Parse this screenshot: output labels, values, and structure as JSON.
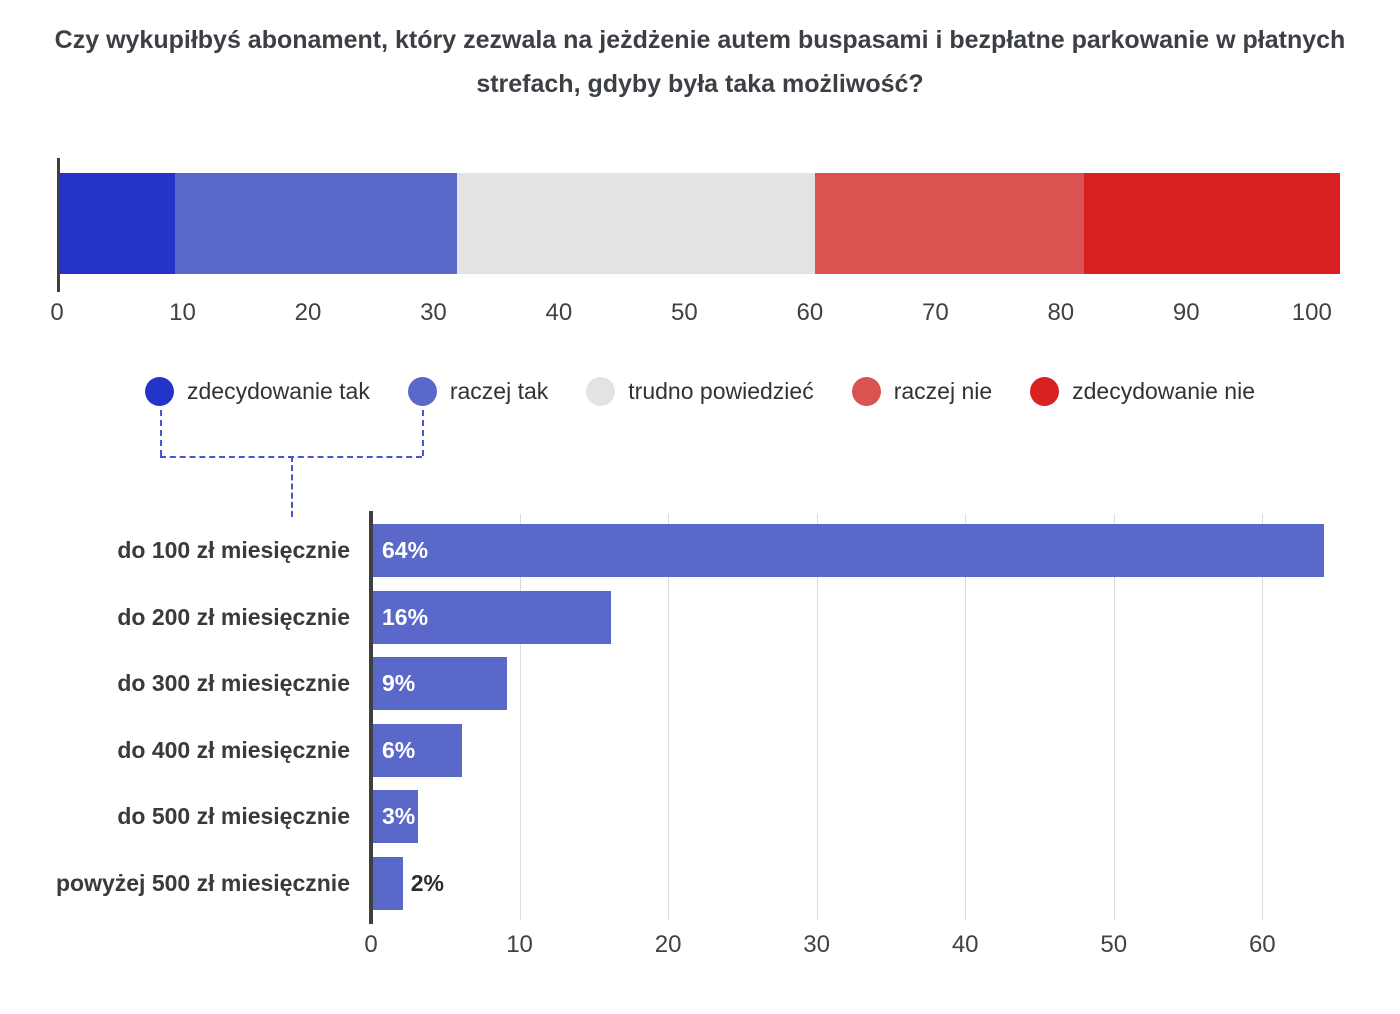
{
  "title": "Czy wykupiłbyś abonament, który zezwala na jeżdżenie autem buspasami i bezpłatne parkowanie w płatnych strefach, gdyby była taka możliwość?",
  "colors": {
    "title_text": "#3c4045",
    "axis_text": "#414141",
    "axis_line": "#3f3f3f",
    "gridline": "#dbdbdb",
    "bracket": "#4757c9"
  },
  "chart_data": [
    {
      "type": "bar",
      "variant": "horizontal-stacked",
      "units": "percent",
      "xlim": [
        0,
        100
      ],
      "ticks": [
        0,
        10,
        20,
        30,
        40,
        50,
        60,
        70,
        80,
        90,
        100
      ],
      "legend_position": "bottom",
      "series": [
        {
          "name": "zdecydowanie tak",
          "value": 9,
          "color": "#2434c8"
        },
        {
          "name": "raczej tak",
          "value": 22,
          "color": "#5a68c9"
        },
        {
          "name": "trudno powiedzieć",
          "value": 28,
          "color": "#e3e3e3"
        },
        {
          "name": "raczej nie",
          "value": 21,
          "color": "#da5350"
        },
        {
          "name": "zdecydowanie nie",
          "value": 20,
          "color": "#d92121"
        }
      ]
    },
    {
      "type": "bar",
      "variant": "horizontal",
      "units": "percent",
      "categories": [
        "do 100 zł miesięcznie",
        "do 200 zł miesięcznie",
        "do 300 zł miesięcznie",
        "do 400 zł miesięcznie",
        "do 500 zł miesięcznie",
        "powyżej 500 zł miesięcznie"
      ],
      "values": [
        64,
        16,
        9,
        6,
        3,
        2
      ],
      "value_labels": [
        "64%",
        "16%",
        "9%",
        "6%",
        "3%",
        "2%"
      ],
      "bar_color": "#5a68c9",
      "xlim": [
        0,
        65
      ],
      "ticks": [
        0,
        10,
        20,
        30,
        40,
        50,
        60
      ],
      "grid": true
    }
  ]
}
